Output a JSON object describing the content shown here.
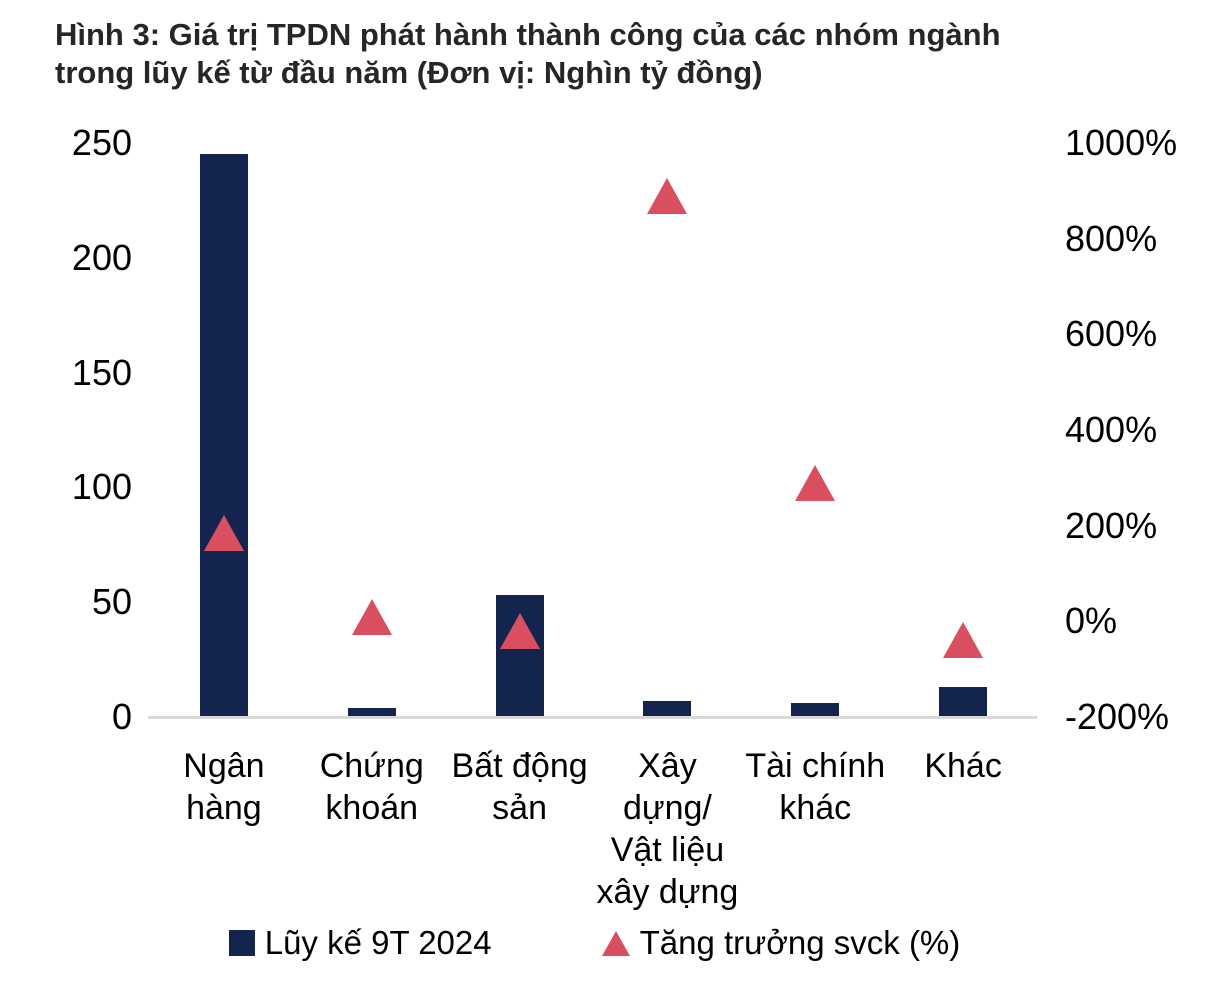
{
  "figure": {
    "title": "Hình 3: Giá trị TPDN phát hành thành công của các nhóm ngành\ntrong lũy kế từ đầu năm (Đơn vị: Nghìn tỷ đồng)"
  },
  "colors": {
    "bar": "#13254E",
    "marker": "#D94F5F",
    "axis_line": "#D9D9D9",
    "title_text": "#262626",
    "tick_text": "#000000"
  },
  "chart_data": {
    "type": "bar",
    "subtype": "combo-bar-with-triangle-markers",
    "categories": [
      "Ngân\nhàng",
      "Chứng\nkhoán",
      "Bất động\nsản",
      "Xây\ndựng/\nVật liệu\nxây dựng",
      "Tài chính\nkhác",
      "Khác"
    ],
    "series": [
      {
        "name": "Lũy kế 9T 2024",
        "type": "bar",
        "axis": "left",
        "values": [
          245,
          4,
          53,
          7,
          6,
          13
        ]
      },
      {
        "name": "Tăng trưởng svck (%)",
        "type": "scatter",
        "marker": "triangle",
        "axis": "right",
        "values": [
          185,
          10,
          -20,
          890,
          290,
          -40
        ]
      }
    ],
    "title": "Hình 3: Giá trị TPDN phát hành thành công của các nhóm ngành trong lũy kế từ đầu năm (Đơn vị: Nghìn tỷ đồng)",
    "xlabel": "",
    "ylabel_left": "Nghìn tỷ đồng",
    "ylabel_right": "%",
    "left_axis": {
      "min": 0,
      "max": 250,
      "step": 50,
      "ticks": [
        "250",
        "200",
        "150",
        "100",
        "50",
        "0"
      ]
    },
    "right_axis": {
      "min": -200,
      "max": 1000,
      "step": 200,
      "ticks": [
        "1000%",
        "800%",
        "600%",
        "400%",
        "200%",
        "0%",
        "-200%"
      ]
    },
    "grid": false,
    "legend_position": "bottom",
    "legend": [
      {
        "label": "Lũy kế 9T 2024",
        "marker": "square"
      },
      {
        "label": "Tăng trưởng svck (%)",
        "marker": "triangle"
      }
    ]
  }
}
